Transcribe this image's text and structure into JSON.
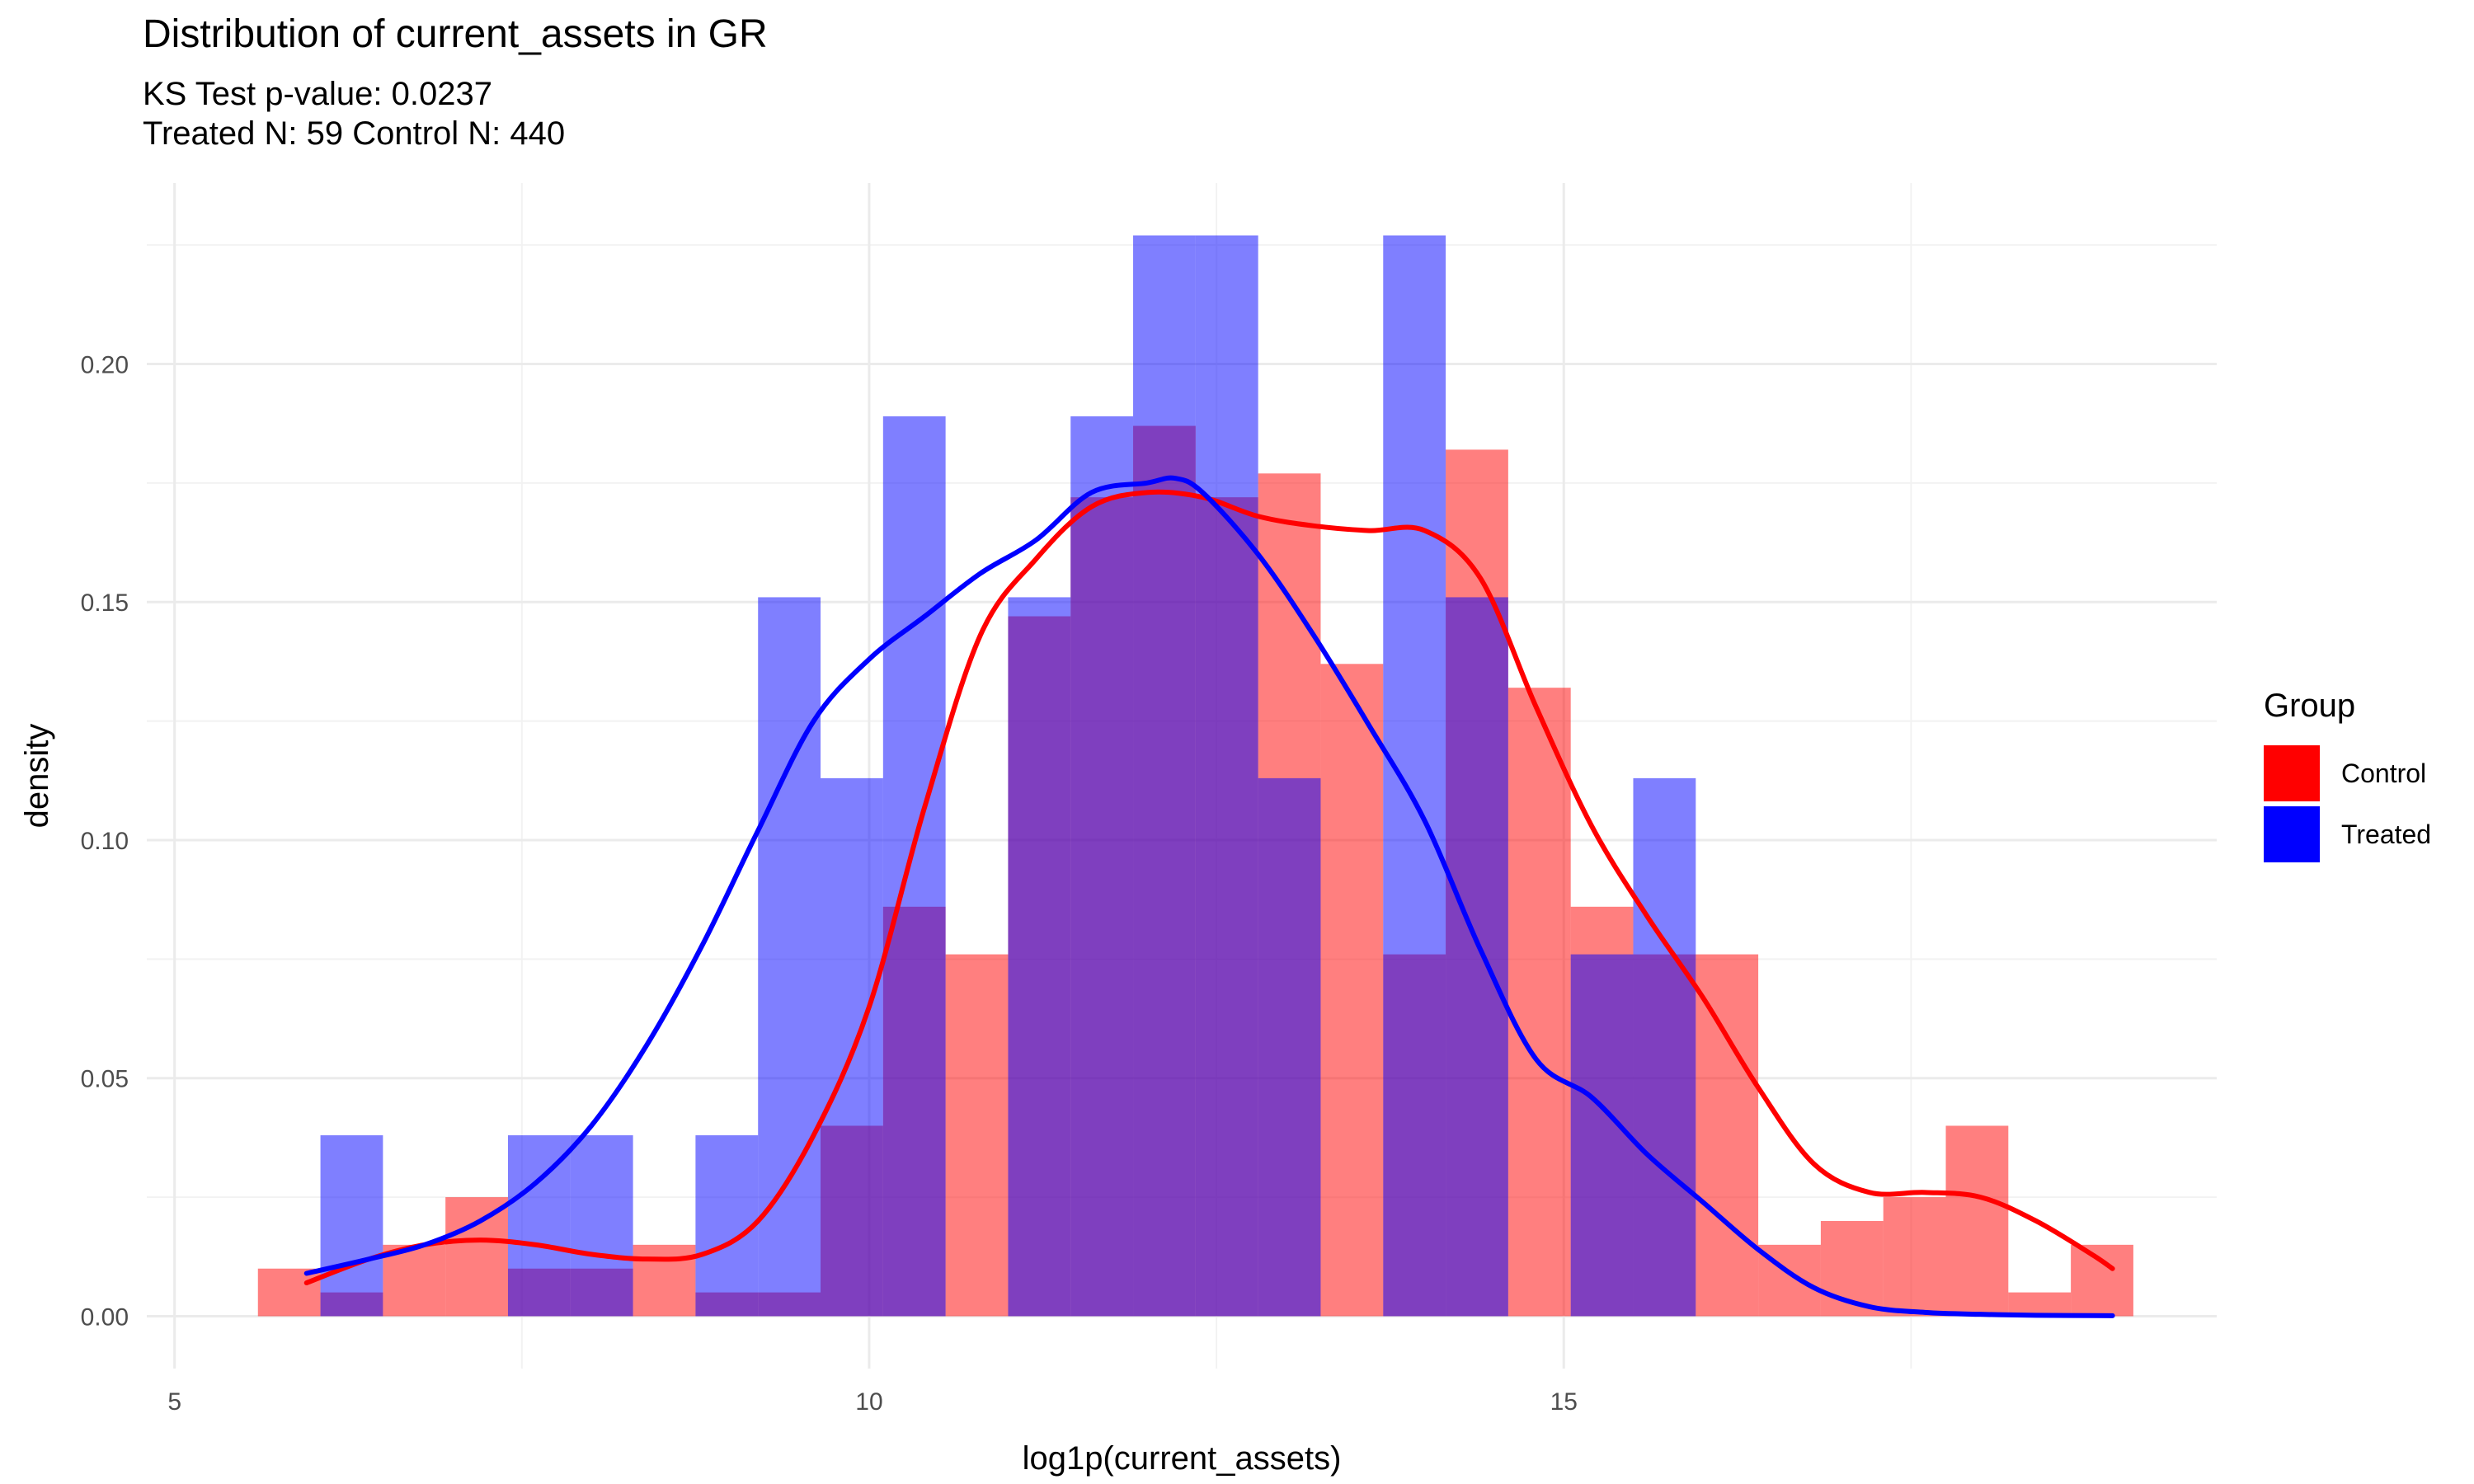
{
  "chart_data": {
    "type": "histogram",
    "title": "Distribution of current_assets in GR",
    "subtitle_lines": [
      "KS Test p-value: 0.0237",
      "Treated N: 59 Control N: 440"
    ],
    "xlabel": "log1p(current_assets)",
    "ylabel": "density",
    "xlim": [
      4.8,
      19.7
    ],
    "ylim": [
      -0.011,
      0.238
    ],
    "x_ticks": [
      5,
      10,
      15
    ],
    "x_tick_labels": [
      "5",
      "10",
      "15"
    ],
    "y_ticks": [
      0,
      0.05,
      0.1,
      0.15,
      0.2
    ],
    "y_tick_labels": [
      "0.00",
      "0.05",
      "0.10",
      "0.15",
      "0.20"
    ],
    "grid": true,
    "legend": {
      "title": "Group",
      "position": "right"
    },
    "bin_width": 0.45,
    "series": [
      {
        "name": "Control",
        "color": "#ff0000",
        "bar_opacity": 0.5,
        "bins": [
          {
            "x0": 5.6,
            "x1": 6.05,
            "density": 0.01
          },
          {
            "x0": 6.05,
            "x1": 6.5,
            "density": 0.005
          },
          {
            "x0": 6.5,
            "x1": 6.95,
            "density": 0.015
          },
          {
            "x0": 6.95,
            "x1": 7.4,
            "density": 0.025
          },
          {
            "x0": 7.4,
            "x1": 7.85,
            "density": 0.01
          },
          {
            "x0": 7.85,
            "x1": 8.3,
            "density": 0.01
          },
          {
            "x0": 8.3,
            "x1": 8.75,
            "density": 0.015
          },
          {
            "x0": 8.75,
            "x1": 9.2,
            "density": 0.005
          },
          {
            "x0": 9.2,
            "x1": 9.65,
            "density": 0.005
          },
          {
            "x0": 9.65,
            "x1": 10.1,
            "density": 0.04
          },
          {
            "x0": 10.1,
            "x1": 10.55,
            "density": 0.086
          },
          {
            "x0": 10.55,
            "x1": 11.0,
            "density": 0.076
          },
          {
            "x0": 11.0,
            "x1": 11.45,
            "density": 0.147
          },
          {
            "x0": 11.45,
            "x1": 11.9,
            "density": 0.172
          },
          {
            "x0": 11.9,
            "x1": 12.35,
            "density": 0.187
          },
          {
            "x0": 12.35,
            "x1": 12.8,
            "density": 0.172
          },
          {
            "x0": 12.8,
            "x1": 13.25,
            "density": 0.177
          },
          {
            "x0": 13.25,
            "x1": 13.7,
            "density": 0.137
          },
          {
            "x0": 13.7,
            "x1": 14.15,
            "density": 0.076
          },
          {
            "x0": 14.15,
            "x1": 14.6,
            "density": 0.182
          },
          {
            "x0": 14.6,
            "x1": 15.05,
            "density": 0.132
          },
          {
            "x0": 15.05,
            "x1": 15.5,
            "density": 0.086
          },
          {
            "x0": 15.5,
            "x1": 15.95,
            "density": 0.076
          },
          {
            "x0": 15.95,
            "x1": 16.4,
            "density": 0.076
          },
          {
            "x0": 16.4,
            "x1": 16.85,
            "density": 0.015
          },
          {
            "x0": 16.85,
            "x1": 17.3,
            "density": 0.02
          },
          {
            "x0": 17.3,
            "x1": 17.75,
            "density": 0.025
          },
          {
            "x0": 17.75,
            "x1": 18.2,
            "density": 0.04
          },
          {
            "x0": 18.2,
            "x1": 18.65,
            "density": 0.005
          },
          {
            "x0": 18.65,
            "x1": 19.1,
            "density": 0.015
          }
        ],
        "density_curve": {
          "x": [
            5.95,
            6.4,
            6.8,
            7.2,
            7.6,
            8.0,
            8.4,
            8.8,
            9.2,
            9.6,
            10.0,
            10.4,
            10.8,
            11.2,
            11.6,
            12.0,
            12.4,
            12.8,
            13.2,
            13.6,
            14.0,
            14.4,
            14.8,
            15.2,
            15.6,
            16.0,
            16.4,
            16.8,
            17.2,
            17.6,
            18.0,
            18.4,
            18.8,
            18.95
          ],
          "y": [
            0.007,
            0.012,
            0.015,
            0.016,
            0.015,
            0.013,
            0.012,
            0.013,
            0.02,
            0.038,
            0.065,
            0.107,
            0.143,
            0.159,
            0.17,
            0.173,
            0.172,
            0.168,
            0.166,
            0.165,
            0.165,
            0.155,
            0.128,
            0.103,
            0.084,
            0.067,
            0.048,
            0.032,
            0.026,
            0.026,
            0.025,
            0.02,
            0.013,
            0.01
          ]
        }
      },
      {
        "name": "Treated",
        "color": "#0000ff",
        "bar_opacity": 0.5,
        "bins": [
          {
            "x0": 6.05,
            "x1": 6.5,
            "density": 0.038
          },
          {
            "x0": 7.4,
            "x1": 7.85,
            "density": 0.038
          },
          {
            "x0": 7.85,
            "x1": 8.3,
            "density": 0.038
          },
          {
            "x0": 8.75,
            "x1": 9.2,
            "density": 0.038
          },
          {
            "x0": 9.2,
            "x1": 9.65,
            "density": 0.151
          },
          {
            "x0": 9.65,
            "x1": 10.1,
            "density": 0.113
          },
          {
            "x0": 10.1,
            "x1": 10.55,
            "density": 0.189
          },
          {
            "x0": 11.0,
            "x1": 11.45,
            "density": 0.151
          },
          {
            "x0": 11.45,
            "x1": 11.9,
            "density": 0.189
          },
          {
            "x0": 11.9,
            "x1": 12.35,
            "density": 0.227
          },
          {
            "x0": 12.35,
            "x1": 12.8,
            "density": 0.227
          },
          {
            "x0": 12.8,
            "x1": 13.25,
            "density": 0.113
          },
          {
            "x0": 13.7,
            "x1": 14.15,
            "density": 0.227
          },
          {
            "x0": 14.15,
            "x1": 14.6,
            "density": 0.151
          },
          {
            "x0": 15.05,
            "x1": 15.5,
            "density": 0.076
          },
          {
            "x0": 15.5,
            "x1": 15.95,
            "density": 0.113
          }
        ],
        "density_curve": {
          "x": [
            5.95,
            6.4,
            6.8,
            7.2,
            7.6,
            8.0,
            8.4,
            8.8,
            9.2,
            9.6,
            10.0,
            10.4,
            10.8,
            11.2,
            11.6,
            12.0,
            12.2,
            12.4,
            12.8,
            13.2,
            13.6,
            14.0,
            14.4,
            14.8,
            15.2,
            15.6,
            16.0,
            16.4,
            16.8,
            17.2,
            17.6,
            18.0,
            18.4,
            18.95
          ],
          "y": [
            0.009,
            0.012,
            0.015,
            0.02,
            0.028,
            0.04,
            0.057,
            0.078,
            0.102,
            0.125,
            0.138,
            0.147,
            0.156,
            0.163,
            0.173,
            0.175,
            0.176,
            0.173,
            0.16,
            0.143,
            0.124,
            0.104,
            0.077,
            0.054,
            0.046,
            0.034,
            0.024,
            0.014,
            0.006,
            0.002,
            0.0008,
            0.0004,
            0.0002,
            0.0001
          ]
        }
      }
    ]
  }
}
